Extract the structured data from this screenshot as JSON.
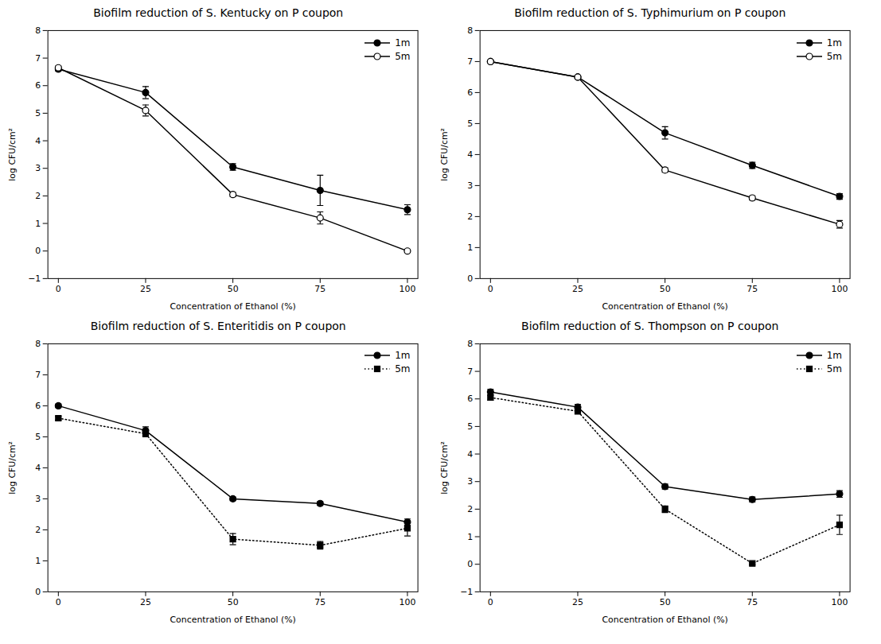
{
  "chart_data": [
    {
      "type": "line",
      "title": "Biofilm reduction of S. Kentucky on P coupon",
      "x": [
        0,
        25,
        50,
        75,
        100
      ],
      "xlabel": "Concentration of Ethanol (%)",
      "ylabel": "log CFU/cm²",
      "xlim": [
        -3,
        103
      ],
      "xticks": [
        0,
        25,
        50,
        75,
        100
      ],
      "ylim": [
        -1,
        8
      ],
      "yticks": [
        -1,
        0,
        1,
        2,
        3,
        4,
        5,
        6,
        7,
        8
      ],
      "grid": false,
      "legend": "upper right",
      "series": [
        {
          "name": "1m",
          "color": "black",
          "marker": "circle",
          "line_style": "solid",
          "values": [
            6.6,
            5.75,
            3.05,
            2.2,
            1.5
          ],
          "yerr": [
            0.07,
            0.22,
            0.12,
            0.55,
            0.18
          ]
        },
        {
          "name": "5m",
          "color": "black",
          "marker": "open_circle",
          "line_style": "solid",
          "values": [
            6.65,
            5.1,
            2.05,
            1.2,
            0.0
          ],
          "yerr": [
            0.06,
            0.2,
            0.08,
            0.22,
            0.04
          ]
        }
      ]
    },
    {
      "type": "line",
      "title": "Biofilm reduction of S. Typhimurium on P coupon",
      "x": [
        0,
        25,
        50,
        75,
        100
      ],
      "xlabel": "Concentration of Ethanol (%)",
      "ylabel": "log CFU/cm²",
      "xlim": [
        -3,
        103
      ],
      "xticks": [
        0,
        25,
        50,
        75,
        100
      ],
      "ylim": [
        0,
        8
      ],
      "yticks": [
        0,
        1,
        2,
        3,
        4,
        5,
        6,
        7,
        8
      ],
      "grid": false,
      "legend": "upper right",
      "series": [
        {
          "name": "1m",
          "color": "black",
          "marker": "circle",
          "line_style": "solid",
          "values": [
            7.0,
            6.5,
            4.7,
            3.65,
            2.65
          ],
          "yerr": [
            0.04,
            0.04,
            0.2,
            0.1,
            0.09
          ]
        },
        {
          "name": "5m",
          "color": "black",
          "marker": "open_circle",
          "line_style": "solid",
          "values": [
            7.0,
            6.5,
            3.5,
            2.6,
            1.75
          ],
          "yerr": [
            0.04,
            0.04,
            0.07,
            0.07,
            0.12
          ]
        }
      ]
    },
    {
      "type": "line",
      "title": "Biofilm reduction of S. Enteritidis on P coupon",
      "x": [
        0,
        25,
        50,
        75,
        100
      ],
      "xlabel": "Concentration of Ethanol (%)",
      "ylabel": "log CFU/cm²",
      "xlim": [
        -3,
        103
      ],
      "xticks": [
        0,
        25,
        50,
        75,
        100
      ],
      "ylim": [
        0,
        8
      ],
      "yticks": [
        0,
        1,
        2,
        3,
        4,
        5,
        6,
        7,
        8
      ],
      "grid": false,
      "legend": "upper right",
      "series": [
        {
          "name": "1m",
          "color": "black",
          "marker": "circle",
          "line_style": "solid",
          "values": [
            6.0,
            5.2,
            3.0,
            2.85,
            2.25
          ],
          "yerr": [
            0.06,
            0.12,
            0.06,
            0.06,
            0.1
          ]
        },
        {
          "name": "5m",
          "color": "black",
          "marker": "square",
          "line_style": "dotted",
          "values": [
            5.6,
            5.1,
            1.7,
            1.5,
            2.05
          ],
          "yerr": [
            0.06,
            0.1,
            0.18,
            0.12,
            0.25
          ]
        }
      ]
    },
    {
      "type": "line",
      "title": "Biofilm reduction of S. Thompson on P coupon",
      "x": [
        0,
        25,
        50,
        75,
        100
      ],
      "xlabel": "Concentration of Ethanol (%)",
      "ylabel": "log CFU/cm²",
      "xlim": [
        -3,
        103
      ],
      "xticks": [
        0,
        25,
        50,
        75,
        100
      ],
      "ylim": [
        -1,
        8
      ],
      "yticks": [
        -1,
        0,
        1,
        2,
        3,
        4,
        5,
        6,
        7,
        8
      ],
      "grid": false,
      "legend": "upper right",
      "series": [
        {
          "name": "1m",
          "color": "black",
          "marker": "circle",
          "line_style": "solid",
          "values": [
            6.25,
            5.7,
            2.82,
            2.35,
            2.55
          ],
          "yerr": [
            0.1,
            0.1,
            0.09,
            0.09,
            0.12
          ]
        },
        {
          "name": "5m",
          "color": "black",
          "marker": "square",
          "line_style": "dotted",
          "values": [
            6.05,
            5.55,
            2.0,
            0.03,
            1.43
          ],
          "yerr": [
            0.1,
            0.08,
            0.12,
            0.04,
            0.35
          ]
        }
      ]
    }
  ]
}
